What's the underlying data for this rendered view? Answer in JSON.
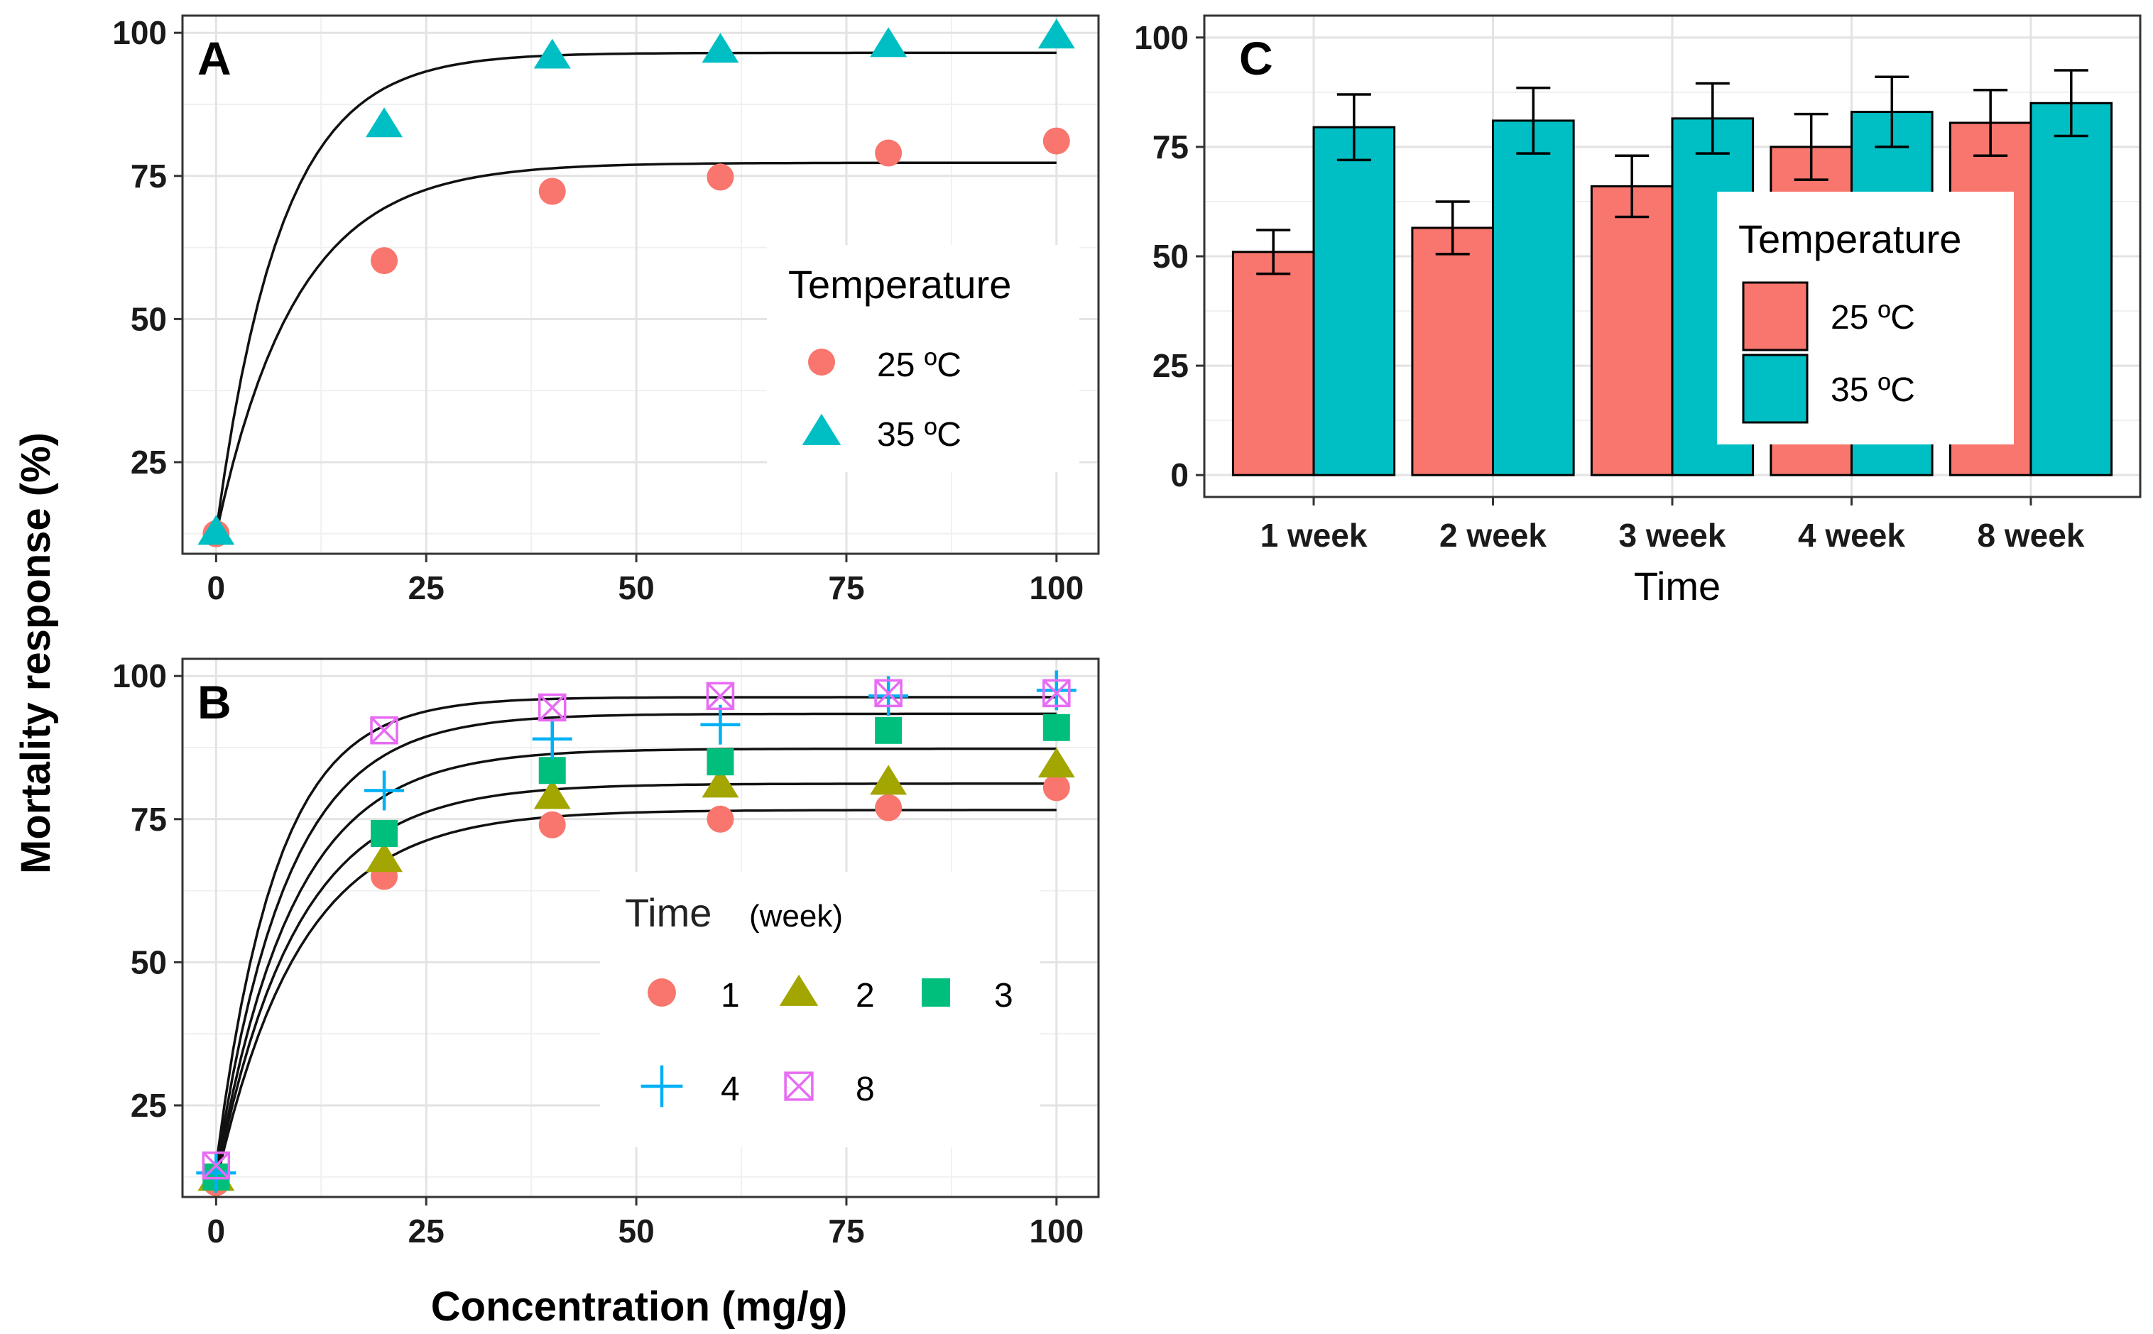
{
  "figure": {
    "y_axis_title": "Mortality response (%)",
    "x_axis_title": "Concentration (mg/g)"
  },
  "colors": {
    "t25": "#F8766D",
    "t35": "#00BFC4",
    "w1": "#F8766D",
    "w2": "#A3A500",
    "w3": "#00BF7D",
    "w4": "#00B0F6",
    "w8": "#E76BF3"
  },
  "chart_data": [
    {
      "id": "A",
      "type": "scatter",
      "panel_label": "A",
      "x_ticks": [
        "0",
        "25",
        "50",
        "75",
        "100"
      ],
      "y_ticks": [
        "25",
        "50",
        "75",
        "100"
      ],
      "xlim": [
        -4,
        105
      ],
      "ylim": [
        9,
        103
      ],
      "legend": {
        "title": "Temperature",
        "position": "right",
        "entries": [
          "25 ºC",
          "35 ºC"
        ]
      },
      "series": [
        {
          "name": "25 ºC",
          "shape": "circle",
          "color_key": "t25",
          "x": [
            0,
            20,
            40,
            60,
            80,
            100
          ],
          "y": [
            12.5,
            60.2,
            72.3,
            74.8,
            79,
            81.1
          ],
          "fit": {
            "lower": 12.5,
            "upper": 77.3,
            "rate": 0.105
          }
        },
        {
          "name": "35 ºC",
          "shape": "triangle",
          "color_key": "t35",
          "x": [
            0,
            20,
            40,
            60,
            80,
            100
          ],
          "y": [
            12.8,
            84,
            96,
            97,
            98,
            99.5
          ],
          "fit": {
            "lower": 12.8,
            "upper": 96.5,
            "rate": 0.13
          }
        }
      ]
    },
    {
      "id": "B",
      "type": "scatter",
      "panel_label": "B",
      "x_ticks": [
        "0",
        "25",
        "50",
        "75",
        "100"
      ],
      "y_ticks": [
        "25",
        "50",
        "75",
        "100"
      ],
      "xlim": [
        -4,
        105
      ],
      "ylim": [
        9,
        103
      ],
      "legend": {
        "title": "Time",
        "subtitle": "(week)",
        "position": "center",
        "entries": [
          "1",
          "2",
          "3",
          "4",
          "8"
        ]
      },
      "series": [
        {
          "name": "1",
          "shape": "circle",
          "color_key": "w1",
          "x": [
            0,
            20,
            40,
            60,
            80,
            100
          ],
          "y": [
            11.5,
            65,
            74,
            75,
            77,
            80.5
          ],
          "fit": {
            "lower": 11.5,
            "upper": 76.6,
            "rate": 0.1
          }
        },
        {
          "name": "2",
          "shape": "triangle",
          "color_key": "w2",
          "x": [
            0,
            20,
            40,
            60,
            80,
            100
          ],
          "y": [
            12.3,
            68,
            79,
            81,
            81.5,
            84.5
          ],
          "fit": {
            "lower": 12.3,
            "upper": 81.2,
            "rate": 0.105
          }
        },
        {
          "name": "3",
          "shape": "square",
          "color_key": "w3",
          "x": [
            0,
            20,
            40,
            60,
            80,
            100
          ],
          "y": [
            12.5,
            72.5,
            83.5,
            85,
            90.5,
            91
          ],
          "fit": {
            "lower": 12.5,
            "upper": 87.3,
            "rate": 0.11
          }
        },
        {
          "name": "4",
          "shape": "plus",
          "color_key": "w4",
          "x": [
            0,
            20,
            40,
            60,
            80,
            100
          ],
          "y": [
            13.2,
            80,
            89,
            91.5,
            96.5,
            97.5
          ],
          "fit": {
            "lower": 13.2,
            "upper": 93.4,
            "rate": 0.12
          }
        },
        {
          "name": "8",
          "shape": "boxcross",
          "color_key": "w8",
          "x": [
            0,
            20,
            40,
            60,
            80,
            100
          ],
          "y": [
            14.5,
            90.5,
            94.5,
            96.5,
            97,
            97
          ],
          "fit": {
            "lower": 14.5,
            "upper": 96.3,
            "rate": 0.14
          }
        }
      ]
    },
    {
      "id": "C",
      "type": "bar",
      "panel_label": "C",
      "categories": [
        "1 week",
        "2 week",
        "3 week",
        "4 week",
        "8 week"
      ],
      "xlabel": "Time",
      "y_ticks": [
        "0",
        "25",
        "50",
        "75",
        "100"
      ],
      "ylim": [
        -5,
        105
      ],
      "legend": {
        "title": "Temperature",
        "position": "center",
        "entries": [
          "25 ºC",
          "35 ºC"
        ]
      },
      "series": [
        {
          "name": "25 ºC",
          "color_key": "t25",
          "values": [
            51,
            56.5,
            66,
            75,
            80.5
          ],
          "errors": [
            5,
            6,
            7,
            7.5,
            7.5
          ]
        },
        {
          "name": "35 ºC",
          "color_key": "t35",
          "values": [
            79.5,
            81,
            81.5,
            83,
            85
          ],
          "errors": [
            7.5,
            7.5,
            8,
            8,
            7.5
          ]
        }
      ]
    }
  ]
}
